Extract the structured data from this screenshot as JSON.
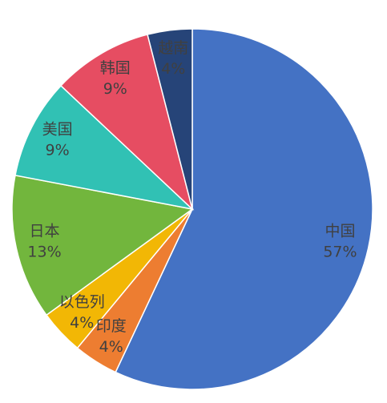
{
  "chart_data": {
    "type": "pie",
    "categories": [
      "中国",
      "印度",
      "以色列",
      "日本",
      "美国",
      "韩国",
      "越南"
    ],
    "values": [
      57,
      4,
      4,
      13,
      9,
      9,
      4
    ],
    "value_labels": [
      "57%",
      "4%",
      "4%",
      "13%",
      "9%",
      "9%",
      "4%"
    ],
    "colors": [
      "#4472c4",
      "#ed7d31",
      "#f2b705",
      "#72b63d",
      "#31c1b4",
      "#e64d62",
      "#264478"
    ]
  }
}
